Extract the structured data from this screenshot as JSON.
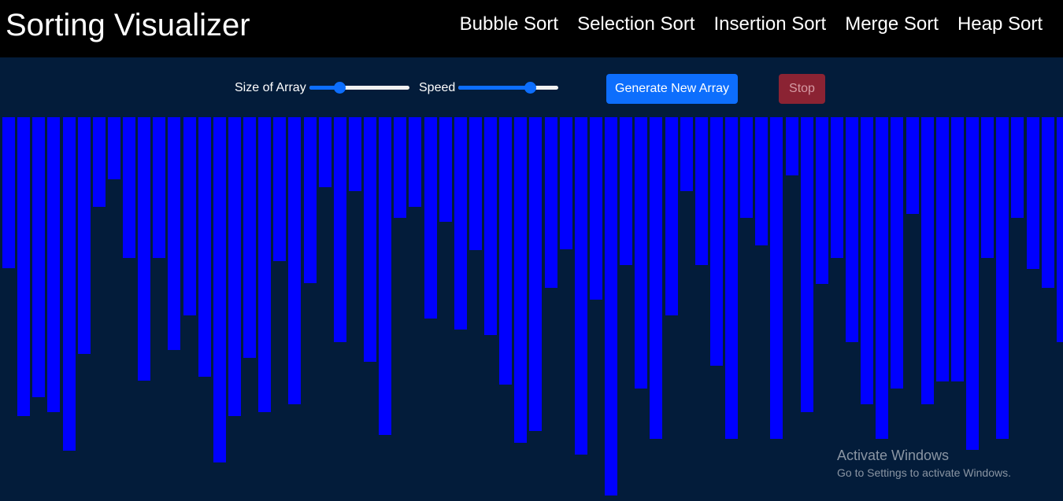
{
  "navbar": {
    "brand": "Sorting Visualizer",
    "links": [
      "Bubble Sort",
      "Selection Sort",
      "Insertion Sort",
      "Merge Sort",
      "Heap Sort"
    ]
  },
  "controls": {
    "size_label": "Size of Array",
    "size_value": 0.3,
    "speed_label": "Speed",
    "speed_value": 0.72,
    "generate_label": "Generate New Array",
    "stop_label": "Stop"
  },
  "array": {
    "bar_color": "#0000ff",
    "values": [
      192,
      380,
      356,
      375,
      424,
      301,
      114,
      79,
      179,
      335,
      179,
      296,
      252,
      330,
      439,
      380,
      306,
      375,
      183,
      365,
      211,
      89,
      286,
      94,
      311,
      404,
      128,
      114,
      256,
      133,
      270,
      169,
      277,
      340,
      414,
      399,
      217,
      168,
      429,
      232,
      481,
      188,
      345,
      409,
      252,
      94,
      188,
      316,
      409,
      128,
      163,
      409,
      74,
      375,
      212,
      179,
      286,
      365,
      409,
      345,
      123,
      365,
      336,
      336,
      423,
      179,
      409,
      128,
      193,
      217,
      286,
      429
    ]
  },
  "watermark": {
    "title": "Activate Windows",
    "subtitle": "Go to Settings to activate Windows."
  }
}
